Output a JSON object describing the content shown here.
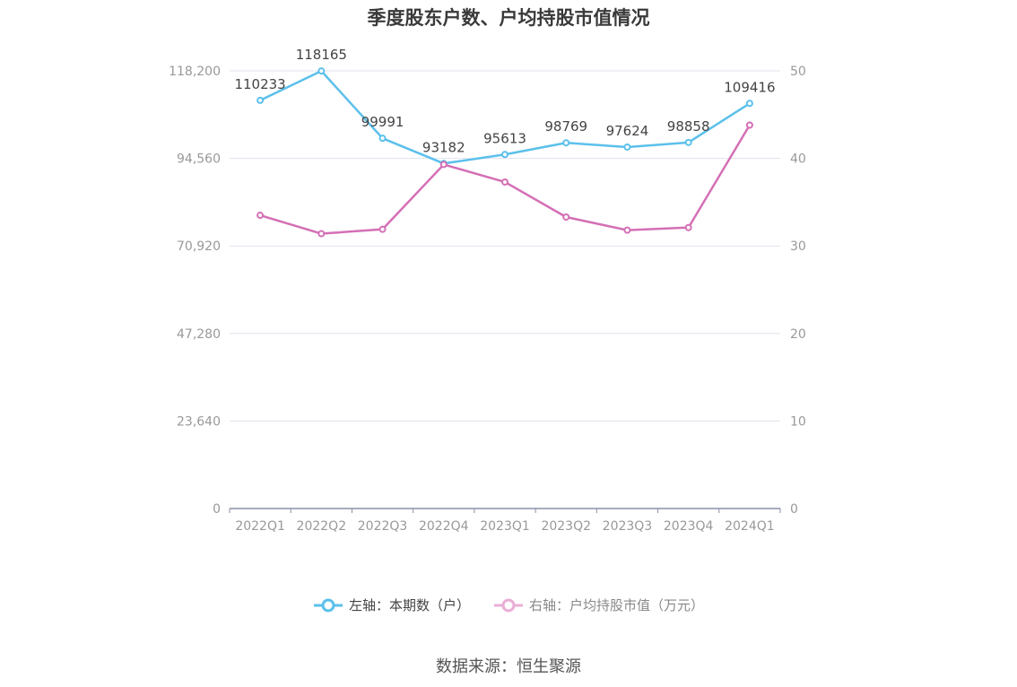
{
  "chart_data": {
    "type": "line",
    "title": "季度股东户数、户均持股市值情况",
    "categories": [
      "2022Q1",
      "2022Q2",
      "2022Q3",
      "2022Q4",
      "2023Q1",
      "2023Q2",
      "2023Q3",
      "2023Q4",
      "2024Q1"
    ],
    "left_axis": {
      "min": 0,
      "max": 118200,
      "ticks": [
        0,
        23640,
        47280,
        70920,
        94560,
        118200
      ],
      "tick_labels": [
        "0",
        "23,640",
        "47,280",
        "70,920",
        "94,560",
        "118,200"
      ]
    },
    "right_axis": {
      "min": 0,
      "max": 50,
      "ticks": [
        0,
        10,
        20,
        30,
        40,
        50
      ],
      "tick_labels": [
        "0",
        "10",
        "20",
        "30",
        "40",
        "50"
      ]
    },
    "grid": true,
    "legend_position": "bottom-center",
    "series": [
      {
        "name": "左轴：本期数（户）",
        "axis": "left",
        "color": "#5bc0eb",
        "values": [
          110233,
          118165,
          99991,
          93182,
          95613,
          98769,
          97624,
          98858,
          109416
        ],
        "data_labels": [
          "110233",
          "118165",
          "99991",
          "93182",
          "95613",
          "98769",
          "97624",
          "98858",
          "109416"
        ]
      },
      {
        "name": "右轴：户均持股市值（万元）",
        "axis": "right",
        "color": "#d46fb5",
        "values": [
          33.5,
          31.4,
          31.9,
          39.3,
          37.3,
          33.3,
          31.8,
          32.1,
          43.8
        ]
      }
    ],
    "source": "数据来源：恒生聚源"
  }
}
